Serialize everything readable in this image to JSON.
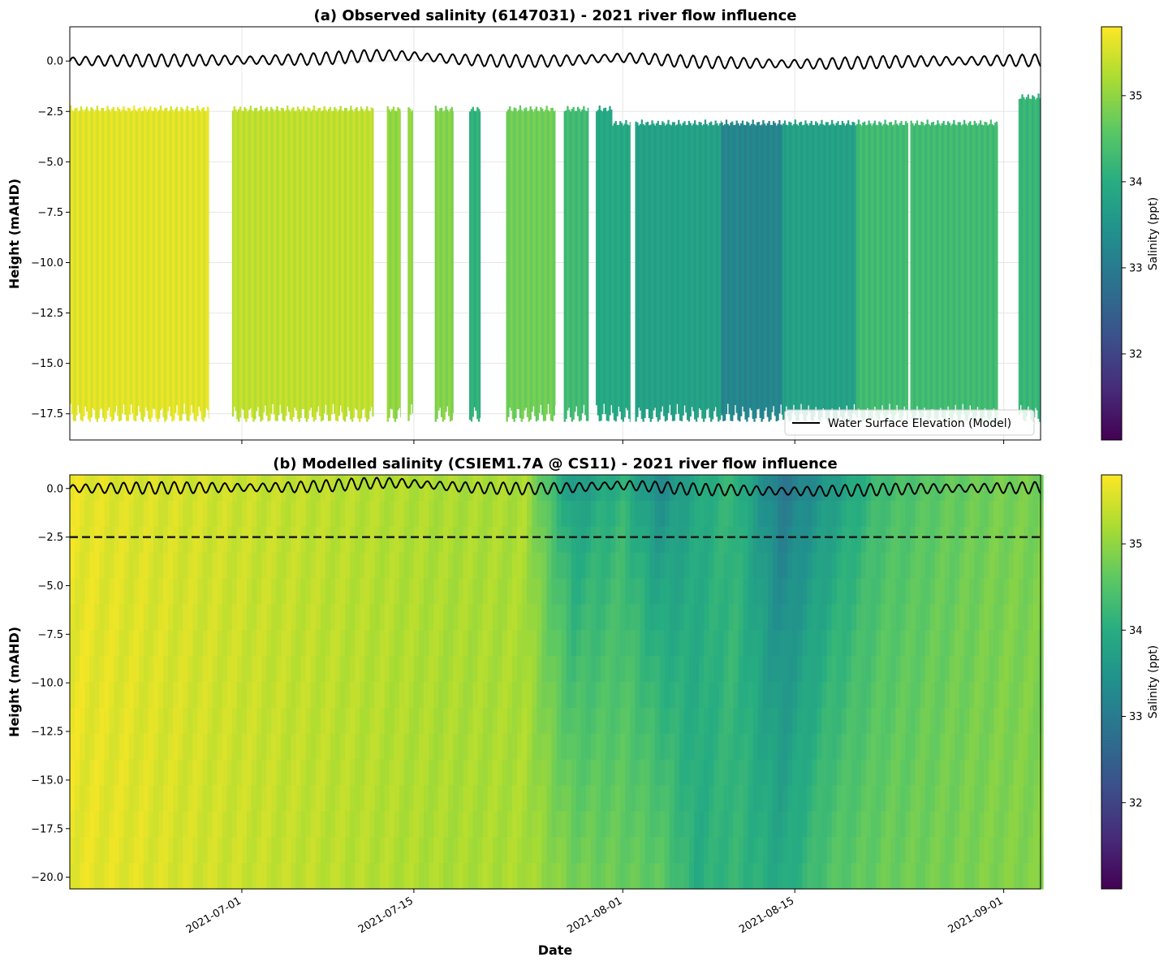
{
  "colors": {
    "wse_line": "#000000",
    "dashed_line": "#1a1a1a",
    "grid": "#e6e6e6",
    "nodata": "#ffffff"
  },
  "colormap": "viridis",
  "shared_xlabel": "Date",
  "chart_data": [
    {
      "type": "heatmap",
      "title": "(a) Observed salinity (6147031) - 2021 river flow influence",
      "xlabel": "",
      "ylabel": "Height (mAHD)",
      "x_range": [
        "2021-06-17",
        "2021-09-04"
      ],
      "ylim": [
        -18.8,
        1.7
      ],
      "yticks": [
        0.0,
        -2.5,
        -5.0,
        -7.5,
        -10.0,
        -12.5,
        -15.0,
        -17.5
      ],
      "ytick_labels": [
        "0.0",
        "−2.5",
        "−5.0",
        "−7.5",
        "−10.0",
        "−12.5",
        "−15.0",
        "−17.5"
      ],
      "xticks": [
        "2021-07-01",
        "2021-07-15",
        "2021-08-01",
        "2021-08-15",
        "2021-09-01"
      ],
      "grid": true,
      "colorbar": {
        "label": "Salinity (ppt)",
        "vmin": 31.0,
        "vmax": 35.8,
        "ticks": [
          32,
          33,
          34,
          35
        ]
      },
      "legend": {
        "position": "lower-right",
        "entries": [
          "Water Surface Elevation (Model)"
        ]
      },
      "observation_segments": [
        {
          "start": "2021-06-17",
          "end": "2021-06-28.3",
          "salinity": 35.6
        },
        {
          "start": "2021-06-30.2",
          "end": "2021-07-11.7",
          "salinity": 35.35
        },
        {
          "start": "2021-07-12.8",
          "end": "2021-07-13.9",
          "salinity": 35.0
        },
        {
          "start": "2021-07-14.5",
          "end": "2021-07-14.9",
          "salinity": 35.0
        },
        {
          "start": "2021-07-16.7",
          "end": "2021-07-18.2",
          "salinity": 34.9
        },
        {
          "start": "2021-07-19.5",
          "end": "2021-07-20.4",
          "salinity": 34.1
        },
        {
          "start": "2021-07-22.5",
          "end": "2021-07-26.5",
          "salinity": 34.75
        },
        {
          "start": "2021-07-27.2",
          "end": "2021-07-29.2",
          "salinity": 34.3
        },
        {
          "start": "2021-07-29.8",
          "end": "2021-08-01.6",
          "salinity": 33.9
        },
        {
          "start": "2021-08-02.0",
          "end": "2021-08-09.0",
          "salinity": 33.75
        },
        {
          "start": "2021-08-09.0",
          "end": "2021-08-14.0",
          "salinity": 33.2
        },
        {
          "start": "2021-08-14.0",
          "end": "2021-08-20.0",
          "salinity": 33.75
        },
        {
          "start": "2021-08-20.0",
          "end": "2021-08-24.2",
          "salinity": 34.3
        },
        {
          "start": "2021-08-24.4",
          "end": "2021-08-31.5",
          "salinity": 34.3
        },
        {
          "start": "2021-09-02.2",
          "end": "2021-09-04",
          "salinity": 34.2
        }
      ]
    },
    {
      "type": "heatmap",
      "title": "(b) Modelled salinity (CSIEM1.7A @ CS11) - 2021 river flow influence",
      "xlabel": "Date",
      "ylabel": "Height (mAHD)",
      "x_range": [
        "2021-06-17",
        "2021-09-04"
      ],
      "ylim": [
        -20.6,
        0.7
      ],
      "yticks": [
        0.0,
        -2.5,
        -5.0,
        -7.5,
        -10.0,
        -12.5,
        -15.0,
        -17.5,
        -20.0
      ],
      "ytick_labels": [
        "0.0",
        "−2.5",
        "−5.0",
        "−7.5",
        "−10.0",
        "−12.5",
        "−15.0",
        "−17.5",
        "−20.0"
      ],
      "xticks": [
        "2021-07-01",
        "2021-07-15",
        "2021-08-01",
        "2021-08-15",
        "2021-09-01"
      ],
      "xtick_labels": [
        "2021-07-01",
        "2021-07-15",
        "2021-08-01",
        "2021-08-15",
        "2021-09-01"
      ],
      "reference_line_y": -2.5,
      "colorbar": {
        "label": "Salinity (ppt)",
        "vmin": 31.0,
        "vmax": 35.8,
        "ticks": [
          32,
          33,
          34,
          35
        ]
      },
      "model_salinity_profile": [
        {
          "date": "2021-06-17",
          "surface": 35.65,
          "bottom": 35.65
        },
        {
          "date": "2021-06-22",
          "surface": 35.55,
          "bottom": 35.6
        },
        {
          "date": "2021-06-27",
          "surface": 35.5,
          "bottom": 35.5
        },
        {
          "date": "2021-07-03",
          "surface": 35.4,
          "bottom": 35.4
        },
        {
          "date": "2021-07-10",
          "surface": 35.3,
          "bottom": 35.3
        },
        {
          "date": "2021-07-18",
          "surface": 35.2,
          "bottom": 35.2
        },
        {
          "date": "2021-07-24",
          "surface": 35.2,
          "bottom": 35.2
        },
        {
          "date": "2021-07-28",
          "surface": 33.6,
          "bottom": 34.8
        },
        {
          "date": "2021-08-01",
          "surface": 34.1,
          "bottom": 34.7
        },
        {
          "date": "2021-08-04",
          "surface": 33.3,
          "bottom": 34.6
        },
        {
          "date": "2021-08-07",
          "surface": 33.9,
          "bottom": 34.0
        },
        {
          "date": "2021-08-10",
          "surface": 34.2,
          "bottom": 34.2
        },
        {
          "date": "2021-08-14",
          "surface": 32.9,
          "bottom": 33.9
        },
        {
          "date": "2021-08-18",
          "surface": 33.6,
          "bottom": 34.5
        },
        {
          "date": "2021-08-22",
          "surface": 34.3,
          "bottom": 34.7
        },
        {
          "date": "2021-08-27",
          "surface": 34.6,
          "bottom": 34.8
        },
        {
          "date": "2021-09-01",
          "surface": 34.8,
          "bottom": 34.9
        },
        {
          "date": "2021-09-04",
          "surface": 34.8,
          "bottom": 34.9
        }
      ]
    }
  ]
}
